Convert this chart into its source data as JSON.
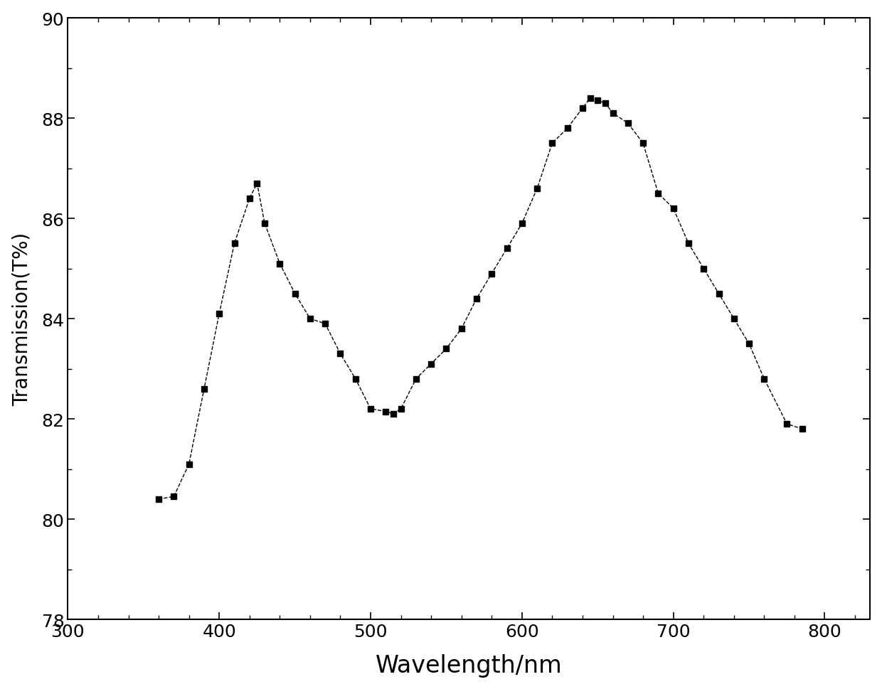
{
  "x": [
    360,
    370,
    380,
    390,
    400,
    410,
    420,
    425,
    430,
    440,
    450,
    460,
    470,
    480,
    490,
    500,
    510,
    515,
    520,
    530,
    540,
    550,
    560,
    570,
    580,
    590,
    600,
    610,
    620,
    630,
    640,
    645,
    650,
    655,
    660,
    670,
    680,
    690,
    700,
    710,
    720,
    730,
    740,
    750,
    760,
    775,
    785
  ],
  "y": [
    80.4,
    80.45,
    81.1,
    82.6,
    84.1,
    85.5,
    86.4,
    86.7,
    85.9,
    85.1,
    84.5,
    84.0,
    83.9,
    83.3,
    82.8,
    82.2,
    82.15,
    82.1,
    82.2,
    82.8,
    83.1,
    83.4,
    83.8,
    84.4,
    84.9,
    85.4,
    85.9,
    86.6,
    87.5,
    87.8,
    88.2,
    88.4,
    88.35,
    88.3,
    88.1,
    87.9,
    87.5,
    86.5,
    86.2,
    85.5,
    85.0,
    84.5,
    84.0,
    83.5,
    82.8,
    81.9,
    81.8
  ],
  "xlabel": "Wavelength/nm",
  "ylabel": "Transmission(T%)",
  "xlim": [
    300,
    830
  ],
  "ylim": [
    78,
    90
  ],
  "xticks": [
    300,
    400,
    500,
    600,
    700,
    800
  ],
  "yticks": [
    78,
    80,
    82,
    84,
    86,
    88,
    90
  ],
  "marker": "s",
  "markersize": 6,
  "line_color": "#000000",
  "linestyle": "--",
  "linewidth": 1.0,
  "xlabel_fontsize": 24,
  "ylabel_fontsize": 20,
  "tick_fontsize": 18,
  "background_color": "#ffffff"
}
